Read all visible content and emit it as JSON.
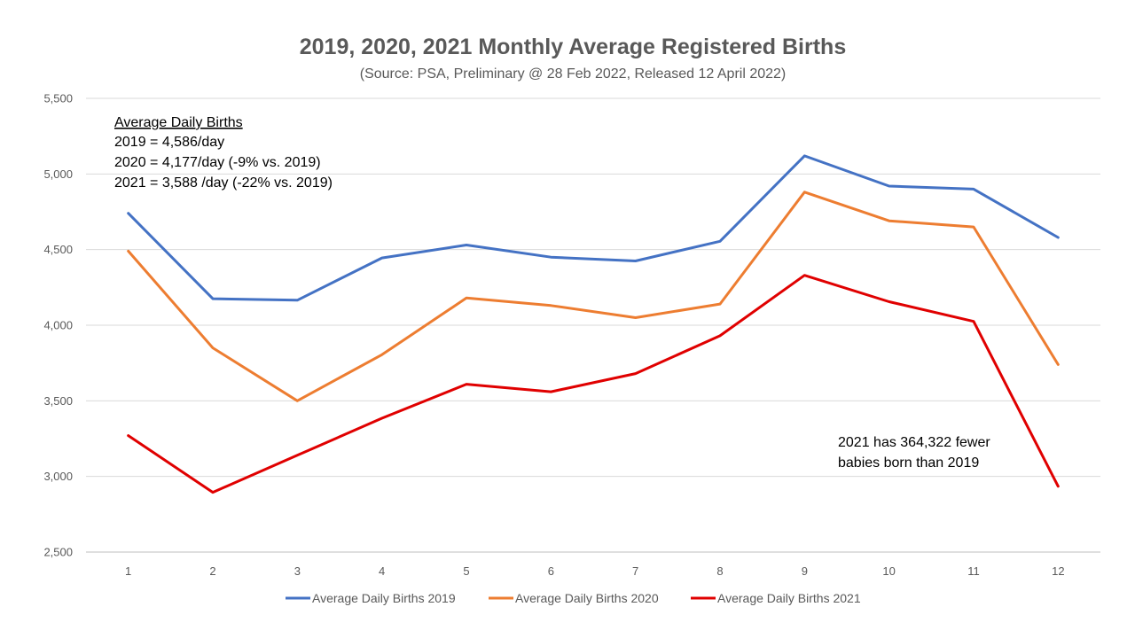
{
  "chart_data": {
    "type": "line",
    "title": "2019, 2020, 2021 Monthly Average Registered Births",
    "subtitle": "(Source: PSA, Preliminary @ 28 Feb 2022, Released 12 April 2022)",
    "xlabel": "",
    "ylabel": "",
    "x": [
      1,
      2,
      3,
      4,
      5,
      6,
      7,
      8,
      9,
      10,
      11,
      12
    ],
    "ylim": [
      2500,
      5500
    ],
    "yticks": [
      2500,
      3000,
      3500,
      4000,
      4500,
      5000,
      5500
    ],
    "ytick_labels": [
      "2,500",
      "3,000",
      "3,500",
      "4,000",
      "4,500",
      "5,000",
      "5,500"
    ],
    "grid": true,
    "legend_position": "bottom",
    "series": [
      {
        "name": "Average Daily Births 2019",
        "color": "#4472C4",
        "values": [
          4740,
          4175,
          4165,
          4445,
          4530,
          4450,
          4425,
          4555,
          5120,
          4920,
          4900,
          4580
        ]
      },
      {
        "name": "Average Daily Births 2020",
        "color": "#ED7D31",
        "values": [
          4490,
          3850,
          3500,
          3805,
          4180,
          4130,
          4050,
          4140,
          4880,
          4690,
          4650,
          3740
        ]
      },
      {
        "name": "Average Daily Births 2021",
        "color": "#E00000",
        "values": [
          3270,
          2895,
          3140,
          3385,
          3610,
          3560,
          3680,
          3930,
          4330,
          4155,
          4025,
          2935
        ]
      }
    ],
    "annotations": {
      "daily_heading": "Average Daily Births",
      "daily_lines": [
        "2019 = 4,586/day",
        "2020 = 4,177/day (-9% vs. 2019)",
        "2021 = 3,588 /day (-22% vs. 2019)"
      ],
      "note_lines": [
        "2021 has 364,322 fewer",
        "babies born than 2019"
      ]
    }
  }
}
